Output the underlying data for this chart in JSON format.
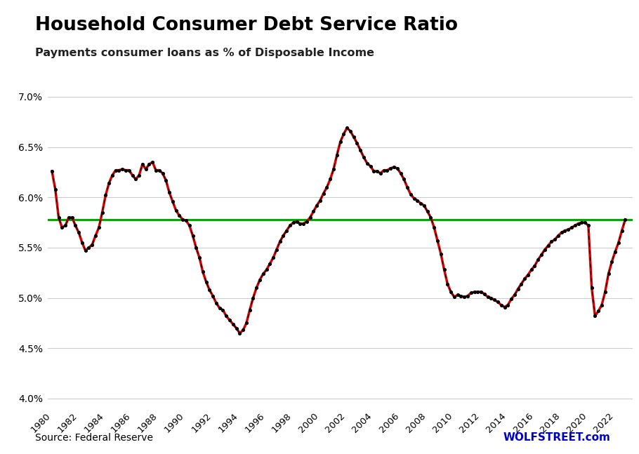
{
  "title": "Household Consumer Debt Service Ratio",
  "subtitle": "Payments consumer loans as % of Disposable Income",
  "source_left": "Source: Federal Reserve",
  "source_right": "WOLFSTREET.com",
  "green_line_y": 5.78,
  "ylim": [
    3.9,
    7.15
  ],
  "yticks": [
    4.0,
    4.5,
    5.0,
    5.5,
    6.0,
    6.5,
    7.0
  ],
  "background_color": "#ffffff",
  "line_color_red": "#dd0000",
  "line_color_black": "#000000",
  "green_color": "#00aa00",
  "series": [
    [
      1980.0,
      6.26
    ],
    [
      1980.25,
      6.08
    ],
    [
      1980.5,
      5.8
    ],
    [
      1980.75,
      5.7
    ],
    [
      1981.0,
      5.72
    ],
    [
      1981.25,
      5.8
    ],
    [
      1981.5,
      5.8
    ],
    [
      1981.75,
      5.72
    ],
    [
      1982.0,
      5.65
    ],
    [
      1982.25,
      5.55
    ],
    [
      1982.5,
      5.47
    ],
    [
      1982.75,
      5.5
    ],
    [
      1983.0,
      5.53
    ],
    [
      1983.25,
      5.62
    ],
    [
      1983.5,
      5.7
    ],
    [
      1983.75,
      5.85
    ],
    [
      1984.0,
      6.02
    ],
    [
      1984.25,
      6.14
    ],
    [
      1984.5,
      6.22
    ],
    [
      1984.75,
      6.27
    ],
    [
      1985.0,
      6.27
    ],
    [
      1985.25,
      6.28
    ],
    [
      1985.5,
      6.27
    ],
    [
      1985.75,
      6.27
    ],
    [
      1986.0,
      6.22
    ],
    [
      1986.25,
      6.18
    ],
    [
      1986.5,
      6.22
    ],
    [
      1986.75,
      6.33
    ],
    [
      1987.0,
      6.28
    ],
    [
      1987.25,
      6.33
    ],
    [
      1987.5,
      6.35
    ],
    [
      1987.75,
      6.27
    ],
    [
      1988.0,
      6.27
    ],
    [
      1988.25,
      6.24
    ],
    [
      1988.5,
      6.17
    ],
    [
      1988.75,
      6.05
    ],
    [
      1989.0,
      5.96
    ],
    [
      1989.25,
      5.87
    ],
    [
      1989.5,
      5.82
    ],
    [
      1989.75,
      5.78
    ],
    [
      1990.0,
      5.77
    ],
    [
      1990.25,
      5.72
    ],
    [
      1990.5,
      5.62
    ],
    [
      1990.75,
      5.5
    ],
    [
      1991.0,
      5.4
    ],
    [
      1991.25,
      5.26
    ],
    [
      1991.5,
      5.16
    ],
    [
      1991.75,
      5.08
    ],
    [
      1992.0,
      5.02
    ],
    [
      1992.25,
      4.95
    ],
    [
      1992.5,
      4.9
    ],
    [
      1992.75,
      4.88
    ],
    [
      1993.0,
      4.82
    ],
    [
      1993.25,
      4.78
    ],
    [
      1993.5,
      4.74
    ],
    [
      1993.75,
      4.7
    ],
    [
      1994.0,
      4.65
    ],
    [
      1994.25,
      4.68
    ],
    [
      1994.5,
      4.75
    ],
    [
      1994.75,
      4.88
    ],
    [
      1995.0,
      5.0
    ],
    [
      1995.25,
      5.1
    ],
    [
      1995.5,
      5.18
    ],
    [
      1995.75,
      5.24
    ],
    [
      1996.0,
      5.28
    ],
    [
      1996.25,
      5.34
    ],
    [
      1996.5,
      5.4
    ],
    [
      1996.75,
      5.48
    ],
    [
      1997.0,
      5.56
    ],
    [
      1997.25,
      5.62
    ],
    [
      1997.5,
      5.67
    ],
    [
      1997.75,
      5.72
    ],
    [
      1998.0,
      5.75
    ],
    [
      1998.25,
      5.76
    ],
    [
      1998.5,
      5.74
    ],
    [
      1998.75,
      5.74
    ],
    [
      1999.0,
      5.76
    ],
    [
      1999.25,
      5.8
    ],
    [
      1999.5,
      5.86
    ],
    [
      1999.75,
      5.92
    ],
    [
      2000.0,
      5.97
    ],
    [
      2000.25,
      6.04
    ],
    [
      2000.5,
      6.1
    ],
    [
      2000.75,
      6.18
    ],
    [
      2001.0,
      6.28
    ],
    [
      2001.25,
      6.42
    ],
    [
      2001.5,
      6.55
    ],
    [
      2001.75,
      6.63
    ],
    [
      2002.0,
      6.69
    ],
    [
      2002.25,
      6.66
    ],
    [
      2002.5,
      6.6
    ],
    [
      2002.75,
      6.54
    ],
    [
      2003.0,
      6.47
    ],
    [
      2003.25,
      6.4
    ],
    [
      2003.5,
      6.34
    ],
    [
      2003.75,
      6.31
    ],
    [
      2004.0,
      6.26
    ],
    [
      2004.25,
      6.26
    ],
    [
      2004.5,
      6.24
    ],
    [
      2004.75,
      6.27
    ],
    [
      2005.0,
      6.27
    ],
    [
      2005.25,
      6.29
    ],
    [
      2005.5,
      6.3
    ],
    [
      2005.75,
      6.29
    ],
    [
      2006.0,
      6.24
    ],
    [
      2006.25,
      6.18
    ],
    [
      2006.5,
      6.1
    ],
    [
      2006.75,
      6.03
    ],
    [
      2007.0,
      5.99
    ],
    [
      2007.25,
      5.97
    ],
    [
      2007.5,
      5.94
    ],
    [
      2007.75,
      5.92
    ],
    [
      2008.0,
      5.86
    ],
    [
      2008.25,
      5.8
    ],
    [
      2008.5,
      5.7
    ],
    [
      2008.75,
      5.57
    ],
    [
      2009.0,
      5.44
    ],
    [
      2009.25,
      5.28
    ],
    [
      2009.5,
      5.14
    ],
    [
      2009.75,
      5.06
    ],
    [
      2010.0,
      5.01
    ],
    [
      2010.25,
      5.03
    ],
    [
      2010.5,
      5.02
    ],
    [
      2010.75,
      5.01
    ],
    [
      2011.0,
      5.02
    ],
    [
      2011.25,
      5.05
    ],
    [
      2011.5,
      5.06
    ],
    [
      2011.75,
      5.06
    ],
    [
      2012.0,
      5.06
    ],
    [
      2012.25,
      5.04
    ],
    [
      2012.5,
      5.01
    ],
    [
      2012.75,
      5.0
    ],
    [
      2013.0,
      4.98
    ],
    [
      2013.25,
      4.96
    ],
    [
      2013.5,
      4.93
    ],
    [
      2013.75,
      4.91
    ],
    [
      2014.0,
      4.93
    ],
    [
      2014.25,
      4.99
    ],
    [
      2014.5,
      5.03
    ],
    [
      2014.75,
      5.09
    ],
    [
      2015.0,
      5.14
    ],
    [
      2015.25,
      5.19
    ],
    [
      2015.5,
      5.23
    ],
    [
      2015.75,
      5.28
    ],
    [
      2016.0,
      5.32
    ],
    [
      2016.25,
      5.38
    ],
    [
      2016.5,
      5.43
    ],
    [
      2016.75,
      5.48
    ],
    [
      2017.0,
      5.52
    ],
    [
      2017.25,
      5.56
    ],
    [
      2017.5,
      5.58
    ],
    [
      2017.75,
      5.62
    ],
    [
      2018.0,
      5.65
    ],
    [
      2018.25,
      5.67
    ],
    [
      2018.5,
      5.68
    ],
    [
      2018.75,
      5.7
    ],
    [
      2019.0,
      5.72
    ],
    [
      2019.25,
      5.74
    ],
    [
      2019.5,
      5.75
    ],
    [
      2019.75,
      5.75
    ],
    [
      2020.0,
      5.72
    ],
    [
      2020.25,
      5.1
    ],
    [
      2020.5,
      4.82
    ],
    [
      2020.75,
      4.87
    ],
    [
      2021.0,
      4.93
    ],
    [
      2021.25,
      5.06
    ],
    [
      2021.5,
      5.24
    ],
    [
      2021.75,
      5.36
    ],
    [
      2022.0,
      5.46
    ],
    [
      2022.25,
      5.55
    ],
    [
      2022.5,
      5.67
    ],
    [
      2022.75,
      5.78
    ]
  ]
}
